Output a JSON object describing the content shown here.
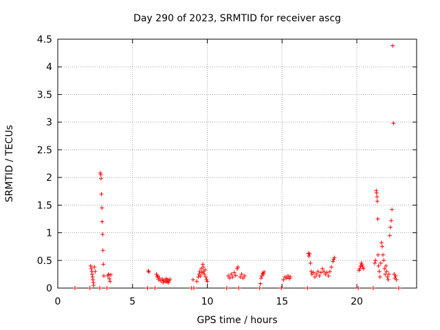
{
  "chart_data": {
    "type": "scatter",
    "title": "Day 290 of 2023, SRMTID for receiver ascg",
    "xlabel": "GPS time / hours",
    "ylabel": "SRMTID / TECUs",
    "xlim": [
      0,
      24
    ],
    "ylim": [
      0,
      4.5
    ],
    "xticks": [
      0,
      5,
      10,
      15,
      20
    ],
    "yticks": [
      0,
      0.5,
      1,
      1.5,
      2,
      2.5,
      3,
      3.5,
      4,
      4.5
    ],
    "grid": true,
    "marker": "+",
    "color": "#ff0000",
    "series": [
      {
        "name": "SRMTID",
        "points": [
          [
            1.15,
            0
          ],
          [
            2.15,
            0
          ],
          [
            2.2,
            0.4
          ],
          [
            2.25,
            0.35
          ],
          [
            2.28,
            0.3
          ],
          [
            2.3,
            0.25
          ],
          [
            2.33,
            0.2
          ],
          [
            2.35,
            0.15
          ],
          [
            2.38,
            0.1
          ],
          [
            2.4,
            0.05
          ],
          [
            2.45,
            0.38
          ],
          [
            2.5,
            0.3
          ],
          [
            2.8,
            0
          ],
          [
            2.85,
            2.08
          ],
          [
            2.88,
            2.05
          ],
          [
            2.9,
            1.98
          ],
          [
            2.92,
            1.7
          ],
          [
            2.95,
            1.45
          ],
          [
            2.97,
            1.2
          ],
          [
            3.0,
            0.97
          ],
          [
            3.02,
            0.68
          ],
          [
            3.05,
            0.43
          ],
          [
            3.08,
            0.22
          ],
          [
            3.3,
            0
          ],
          [
            3.35,
            0.22
          ],
          [
            3.4,
            0.25
          ],
          [
            3.45,
            0.17
          ],
          [
            3.5,
            0.12
          ],
          [
            3.55,
            0.24
          ],
          [
            6.0,
            0
          ],
          [
            6.05,
            0.31
          ],
          [
            6.1,
            0.29
          ],
          [
            6.5,
            0
          ],
          [
            6.6,
            0.25
          ],
          [
            6.65,
            0.2
          ],
          [
            6.7,
            0.22
          ],
          [
            6.75,
            0.15
          ],
          [
            6.8,
            0.18
          ],
          [
            6.9,
            0.13
          ],
          [
            7.0,
            0.16
          ],
          [
            7.05,
            0.1
          ],
          [
            7.1,
            0.14
          ],
          [
            7.2,
            0.12
          ],
          [
            7.25,
            0.17
          ],
          [
            7.3,
            0.11
          ],
          [
            7.35,
            0.15
          ],
          [
            7.4,
            0.1
          ],
          [
            7.45,
            0.13
          ],
          [
            7.5,
            0.16
          ],
          [
            8.95,
            0
          ],
          [
            9.1,
            0
          ],
          [
            9.05,
            0.15
          ],
          [
            9.3,
            0.12
          ],
          [
            9.4,
            0.2
          ],
          [
            9.45,
            0.25
          ],
          [
            9.5,
            0.3
          ],
          [
            9.55,
            0.22
          ],
          [
            9.6,
            0.35
          ],
          [
            9.65,
            0.28
          ],
          [
            9.7,
            0.43
          ],
          [
            9.72,
            0.38
          ],
          [
            9.75,
            0.3
          ],
          [
            9.8,
            0.25
          ],
          [
            9.85,
            0.33
          ],
          [
            9.9,
            0.2
          ],
          [
            9.95,
            0.15
          ],
          [
            10.0,
            0.12
          ],
          [
            11.3,
            0
          ],
          [
            11.4,
            0.22
          ],
          [
            11.5,
            0.18
          ],
          [
            11.6,
            0.25
          ],
          [
            11.7,
            0.2
          ],
          [
            11.8,
            0.28
          ],
          [
            11.9,
            0.23
          ],
          [
            12.0,
            0.35
          ],
          [
            12.05,
            0.38
          ],
          [
            12.1,
            0
          ],
          [
            12.2,
            0.2
          ],
          [
            12.3,
            0.25
          ],
          [
            12.4,
            0.18
          ],
          [
            12.5,
            0.22
          ],
          [
            13.5,
            0
          ],
          [
            13.55,
            0.08
          ],
          [
            13.6,
            0.18
          ],
          [
            13.65,
            0.22
          ],
          [
            13.7,
            0.27
          ],
          [
            13.75,
            0.25
          ],
          [
            13.8,
            0.29
          ],
          [
            14.95,
            0
          ],
          [
            15.1,
            0.15
          ],
          [
            15.2,
            0.2
          ],
          [
            15.3,
            0.18
          ],
          [
            15.4,
            0.22
          ],
          [
            15.5,
            0.17
          ],
          [
            15.55,
            0.2
          ],
          [
            16.7,
            0
          ],
          [
            16.75,
            0.63
          ],
          [
            16.8,
            0.58
          ],
          [
            16.85,
            0.62
          ],
          [
            16.9,
            0.45
          ],
          [
            16.95,
            0.3
          ],
          [
            17.0,
            0.25
          ],
          [
            17.1,
            0.28
          ],
          [
            17.2,
            0.2
          ],
          [
            17.3,
            0.25
          ],
          [
            17.4,
            0.3
          ],
          [
            17.5,
            0.22
          ],
          [
            17.6,
            0.28
          ],
          [
            17.7,
            0.35
          ],
          [
            17.8,
            0.3
          ],
          [
            17.9,
            0.25
          ],
          [
            18.0,
            0.28
          ],
          [
            18.1,
            0.22
          ],
          [
            18.2,
            0.3
          ],
          [
            18.3,
            0.38
          ],
          [
            18.4,
            0.48
          ],
          [
            18.45,
            0.52
          ],
          [
            18.5,
            0.55
          ],
          [
            20.1,
            0
          ],
          [
            20.15,
            0.32
          ],
          [
            20.2,
            0.35
          ],
          [
            20.25,
            0.4
          ],
          [
            20.3,
            0.45
          ],
          [
            20.35,
            0.42
          ],
          [
            20.4,
            0.38
          ],
          [
            20.45,
            0.35
          ],
          [
            21.1,
            0
          ],
          [
            21.2,
            0.45
          ],
          [
            21.25,
            0.5
          ],
          [
            21.3,
            1.76
          ],
          [
            21.32,
            1.72
          ],
          [
            21.35,
            1.65
          ],
          [
            21.37,
            1.57
          ],
          [
            21.4,
            1.25
          ],
          [
            21.42,
            0.6
          ],
          [
            21.45,
            0.4
          ],
          [
            21.5,
            0.3
          ],
          [
            21.55,
            0.2
          ],
          [
            21.6,
            0.45
          ],
          [
            21.65,
            0.82
          ],
          [
            21.7,
            0.75
          ],
          [
            21.75,
            0.6
          ],
          [
            21.8,
            0.5
          ],
          [
            21.85,
            0.35
          ],
          [
            21.9,
            0.25
          ],
          [
            21.95,
            0.4
          ],
          [
            22.0,
            0.3
          ],
          [
            22.05,
            0.2
          ],
          [
            22.1,
            0.15
          ],
          [
            22.15,
            0.25
          ],
          [
            22.2,
            0.95
          ],
          [
            22.25,
            1.1
          ],
          [
            22.3,
            1.22
          ],
          [
            22.35,
            1.42
          ],
          [
            22.4,
            4.38
          ],
          [
            22.45,
            2.98
          ],
          [
            22.5,
            0.25
          ],
          [
            22.55,
            0.18
          ],
          [
            22.6,
            0.22
          ],
          [
            22.65,
            0.15
          ],
          [
            22.8,
            0
          ]
        ]
      }
    ]
  }
}
